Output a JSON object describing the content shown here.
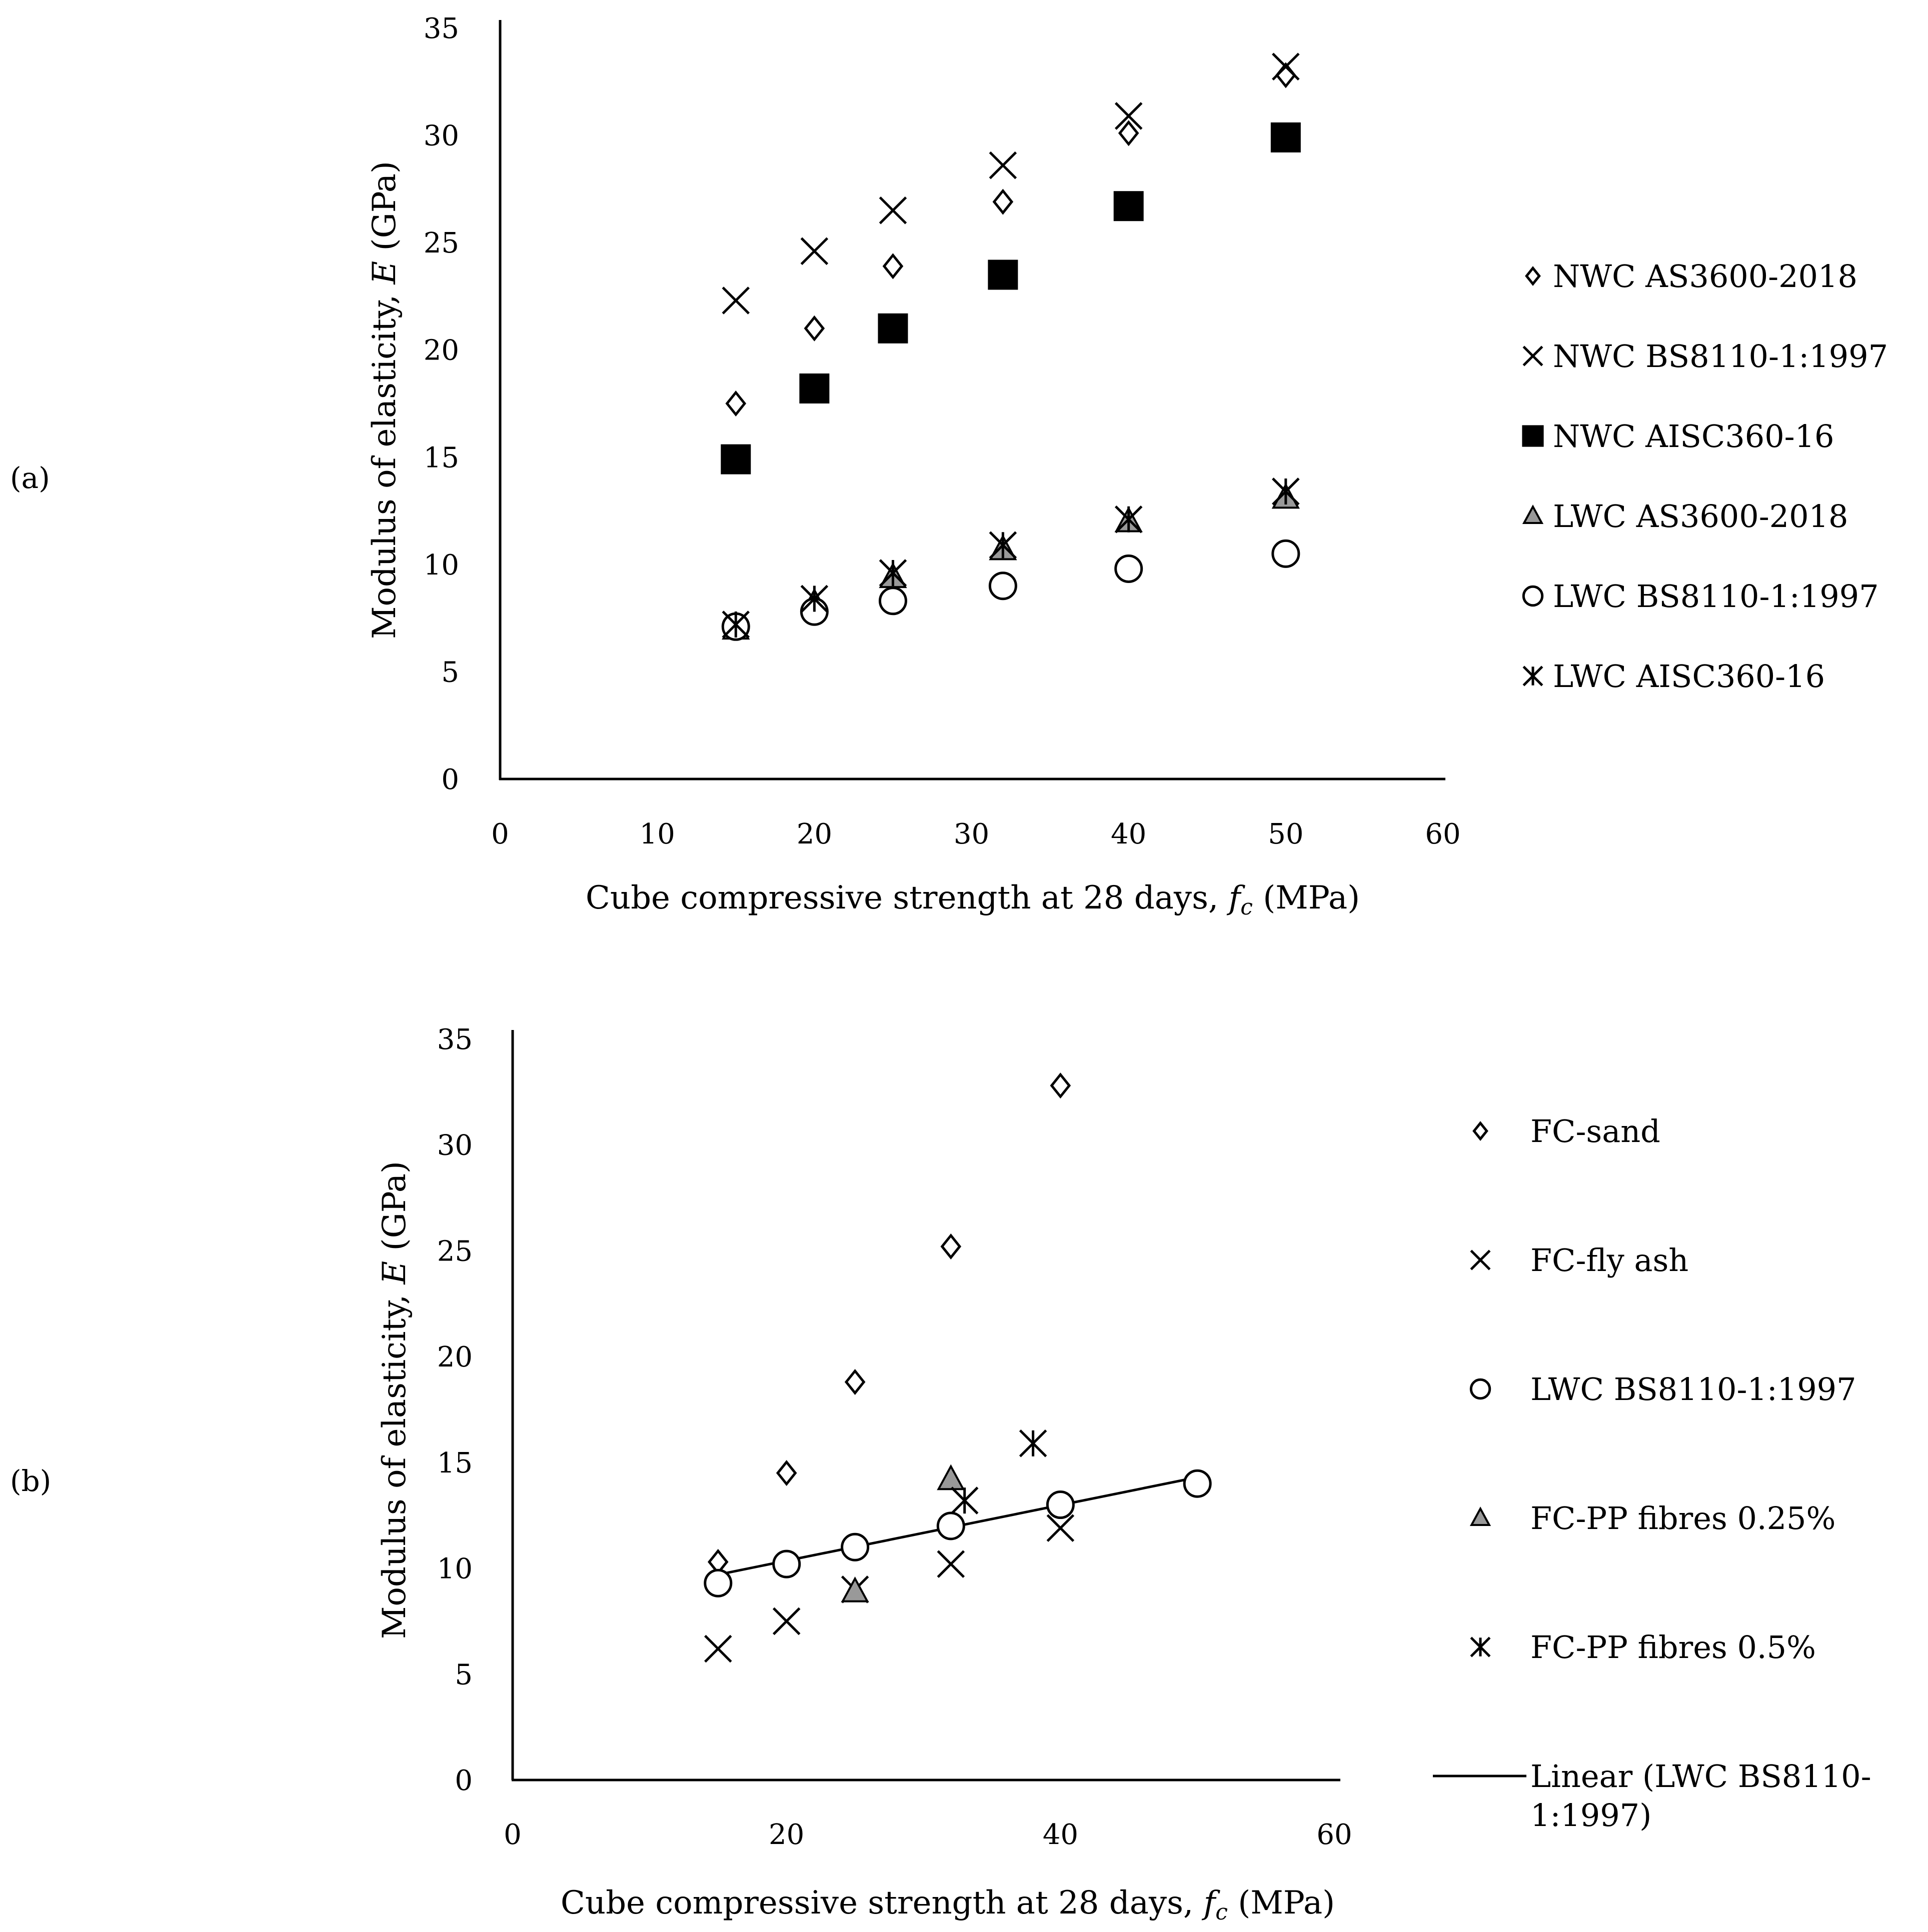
{
  "figure": {
    "panel_labels": [
      "(a)",
      "(b)"
    ]
  },
  "chart_data": [
    {
      "type": "scatter",
      "panel": "(a)",
      "xlabel": "Cube compressive strength at 28 days, fc (MPa)",
      "ylabel": "Modulus of elasticity, E (GPa)",
      "xlim": [
        0,
        60
      ],
      "ylim": [
        0,
        35
      ],
      "xticks": [
        0,
        10,
        20,
        30,
        40,
        50,
        60
      ],
      "yticks": [
        0,
        5,
        10,
        15,
        20,
        25,
        30,
        35
      ],
      "grid": false,
      "legend_position": "right",
      "series": [
        {
          "name": "NWC AS3600-2018",
          "marker": "diamond-open",
          "x": [
            15,
            20,
            25,
            32,
            40,
            50
          ],
          "y": [
            17.5,
            21.0,
            23.9,
            26.9,
            30.1,
            32.8
          ]
        },
        {
          "name": "NWC BS8110-1:1997",
          "marker": "x",
          "x": [
            15,
            20,
            25,
            32,
            40,
            50
          ],
          "y": [
            22.3,
            24.6,
            26.5,
            28.6,
            30.9,
            33.2
          ]
        },
        {
          "name": "NWC AISC360-16",
          "marker": "square-filled",
          "x": [
            15,
            20,
            25,
            32,
            40,
            50
          ],
          "y": [
            14.9,
            18.2,
            21.0,
            23.5,
            26.7,
            29.9
          ]
        },
        {
          "name": "LWC AS3600-2018",
          "marker": "triangle-gray",
          "x": [
            15,
            20,
            25,
            32,
            40,
            50
          ],
          "y": [
            7.0,
            8.2,
            9.4,
            10.7,
            12.0,
            13.1
          ]
        },
        {
          "name": "LWC BS8110-1:1997",
          "marker": "circle-open",
          "x": [
            15,
            20,
            25,
            32,
            40,
            50
          ],
          "y": [
            7.1,
            7.8,
            8.3,
            9.0,
            9.8,
            10.5
          ]
        },
        {
          "name": "LWC AISC360-16",
          "marker": "asterisk",
          "x": [
            15,
            20,
            25,
            32,
            40,
            50
          ],
          "y": [
            7.2,
            8.4,
            9.6,
            10.9,
            12.1,
            13.4
          ]
        }
      ]
    },
    {
      "type": "scatter",
      "panel": "(b)",
      "xlabel": "Cube compressive strength at 28 days, fc (MPa)",
      "ylabel": "Modulus of elasticity, E (GPa)",
      "xlim": [
        0,
        60
      ],
      "ylim": [
        0,
        35
      ],
      "xticks": [
        0,
        20,
        40,
        60
      ],
      "yticks": [
        0,
        5,
        10,
        15,
        20,
        25,
        30,
        35
      ],
      "grid": false,
      "legend_position": "right",
      "series": [
        {
          "name": "FC-sand",
          "marker": "diamond-open",
          "x": [
            15,
            20,
            25,
            32,
            40
          ],
          "y": [
            10.3,
            14.5,
            18.8,
            25.2,
            32.8
          ]
        },
        {
          "name": "FC-fly ash",
          "marker": "x",
          "x": [
            15,
            20,
            25,
            32,
            40
          ],
          "y": [
            6.2,
            7.5,
            9.0,
            10.2,
            11.9
          ]
        },
        {
          "name": "LWC BS8110-1:1997",
          "marker": "circle-open",
          "x": [
            15,
            20,
            25,
            32,
            40,
            50
          ],
          "y": [
            9.3,
            10.2,
            11.0,
            12.0,
            13.0,
            14.0
          ]
        },
        {
          "name": "FC-PP fibres 0.25%",
          "marker": "triangle-gray",
          "x": [
            25,
            32
          ],
          "y": [
            8.9,
            14.2
          ]
        },
        {
          "name": "FC-PP fibres 0.5%",
          "marker": "asterisk",
          "x": [
            33,
            38
          ],
          "y": [
            13.2,
            15.9
          ]
        }
      ],
      "trendline": {
        "name": "Linear (LWC BS8110-1:1997)",
        "label_lines": [
          "Linear (LWC BS8110-",
          "1:1997)"
        ],
        "x": [
          15,
          50
        ],
        "y": [
          9.7,
          14.3
        ]
      }
    }
  ]
}
